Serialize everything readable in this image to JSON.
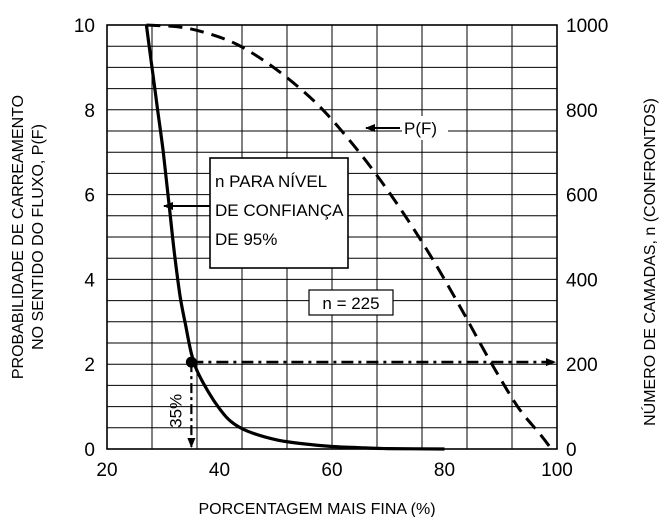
{
  "chart_data": {
    "type": "line",
    "xlabel": "PORCENTAGEM MAIS FINA (%)",
    "ylabel_left_lines": [
      "PROBABILIDADE DE CARREAMENTO",
      "NO SENTIDO DO FLUXO, P(F)"
    ],
    "ylabel_right": "NÚMERO DE CAMADAS, n (CONFRONTOS)",
    "xlim": [
      20,
      100
    ],
    "ylim_left": [
      0,
      10
    ],
    "ylim_right": [
      0,
      1000
    ],
    "x_ticks": [
      "20",
      "40",
      "60",
      "80",
      "100"
    ],
    "y_left_ticks": [
      "0",
      "2",
      "4",
      "6",
      "8",
      "10"
    ],
    "y_right_ticks": [
      "0",
      "200",
      "400",
      "600",
      "800",
      "1000"
    ],
    "grid": true,
    "series": [
      {
        "name": "n PARA NÍVEL DE CONFIANÇA DE 95%",
        "axis": "right",
        "style": "solid",
        "x": [
          27,
          28,
          29,
          30,
          31,
          32,
          33,
          34,
          35,
          36,
          38,
          40,
          42,
          45,
          50,
          55,
          60,
          65,
          70,
          80
        ],
        "y": [
          1000,
          900,
          800,
          700,
          580,
          460,
          360,
          290,
          225,
          185,
          135,
          95,
          65,
          42,
          22,
          12,
          6,
          3,
          1,
          0
        ]
      },
      {
        "name": "P(F)",
        "axis": "left",
        "style": "dashed",
        "x": [
          27,
          33,
          38,
          43,
          48,
          53,
          58,
          63,
          68,
          73,
          78,
          83,
          88,
          93,
          97,
          99
        ],
        "y": [
          10,
          9.95,
          9.8,
          9.55,
          9.15,
          8.65,
          8.05,
          7.3,
          6.45,
          5.5,
          4.45,
          3.3,
          2.1,
          1.0,
          0.35,
          0
        ]
      }
    ],
    "annotations": {
      "box_label_lines": [
        "n PARA NÍVEL",
        "DE CONFIANÇA",
        "DE 95%"
      ],
      "pf_label": "P(F)",
      "n_label": "n = 225",
      "percent_label": "35%",
      "marker_point": {
        "x": 35,
        "y_left": 2.05
      }
    }
  }
}
